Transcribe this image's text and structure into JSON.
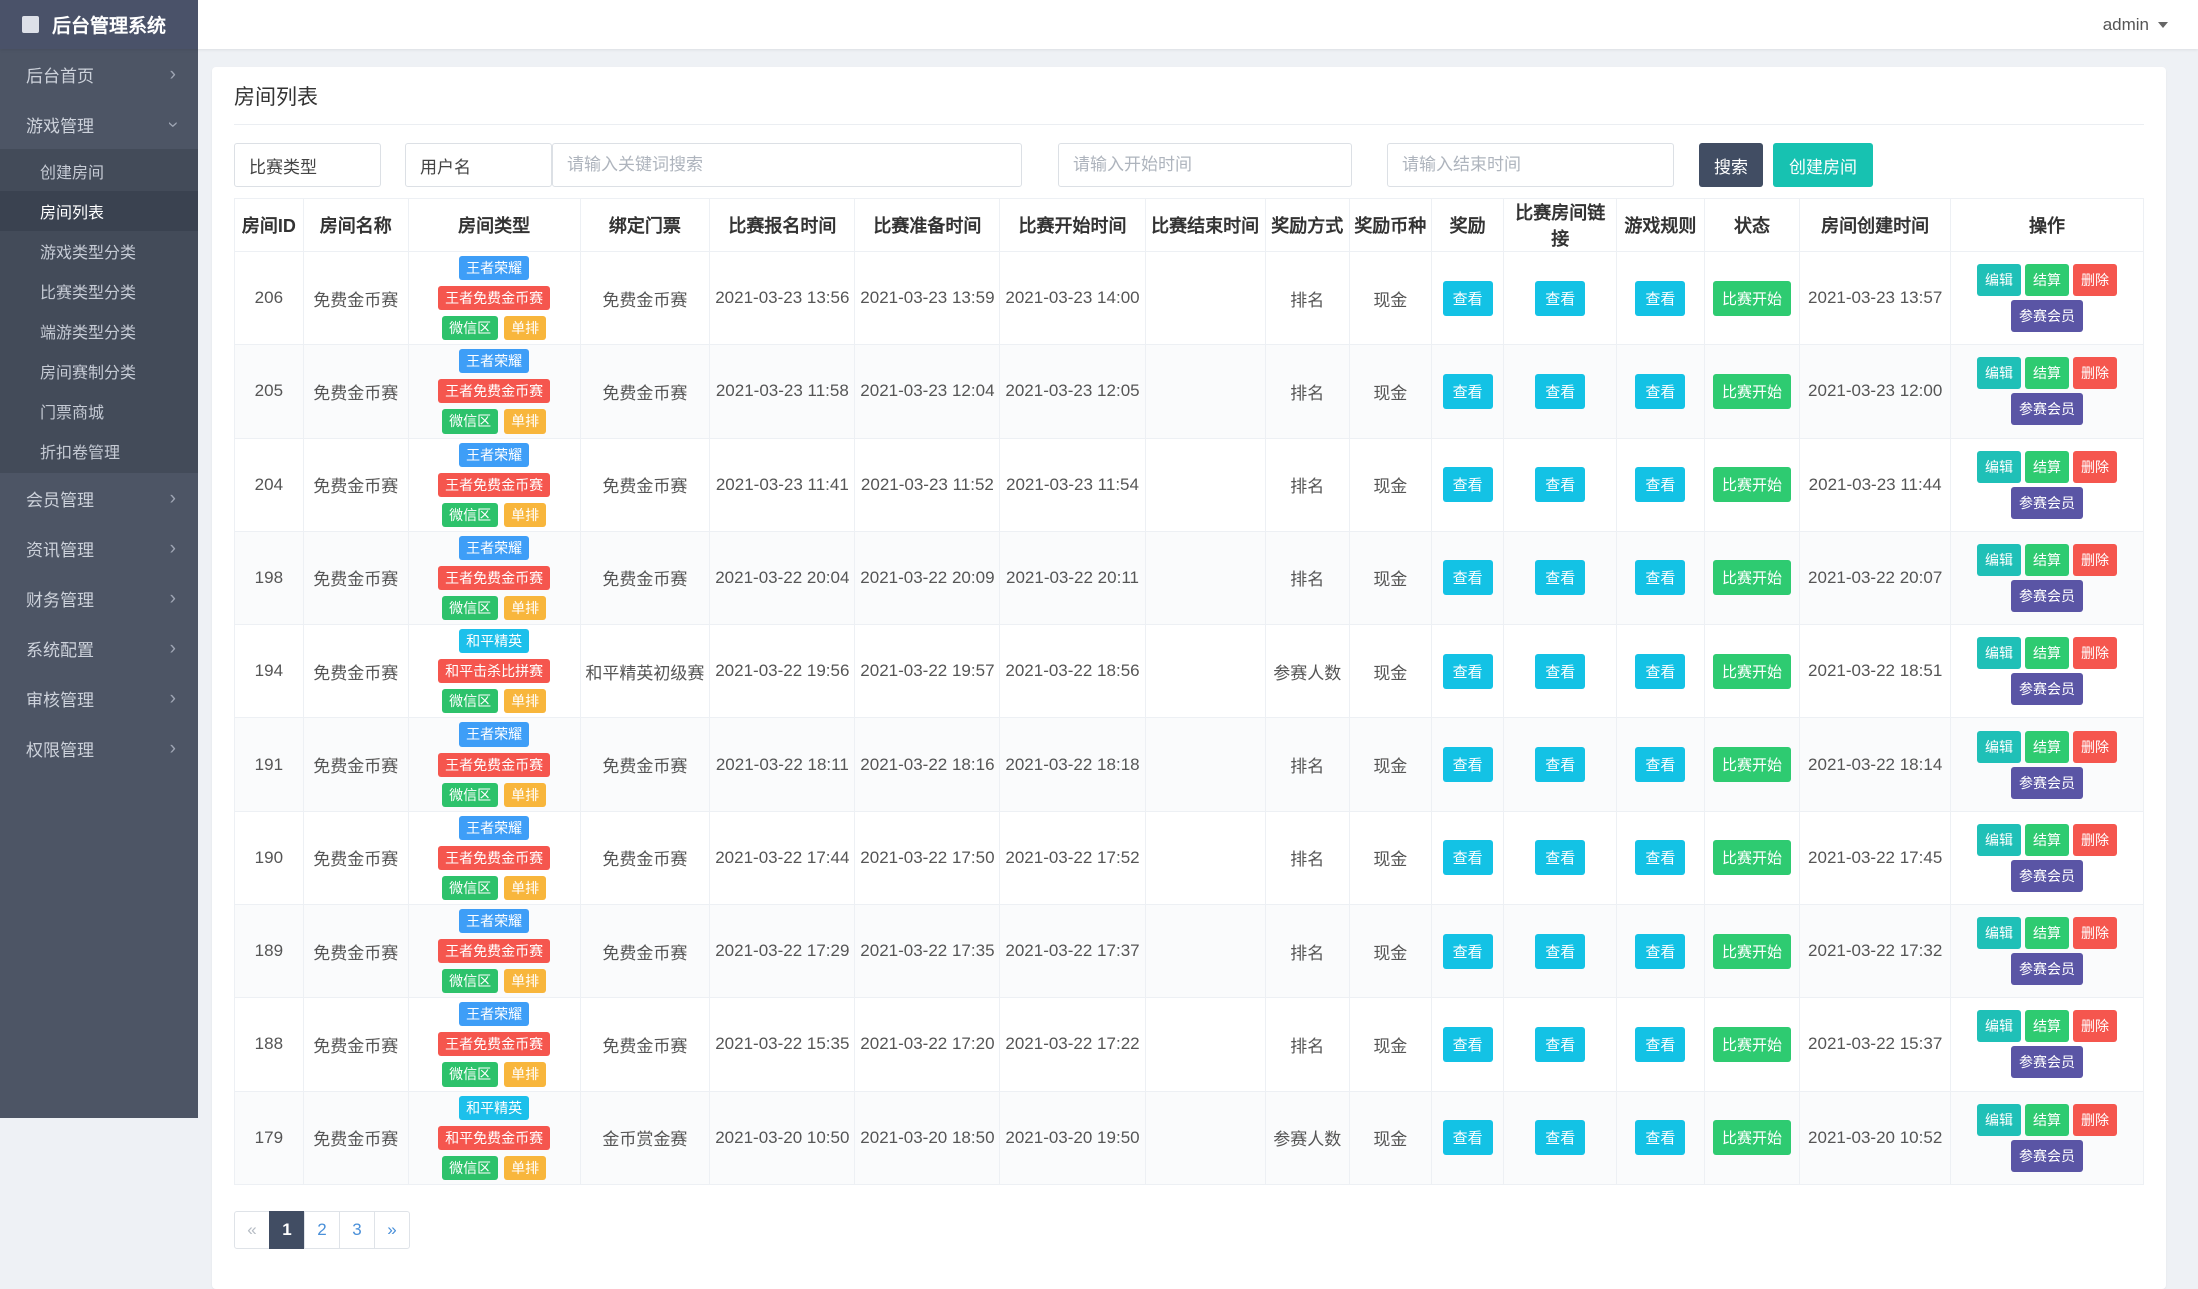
{
  "app": {
    "title": "后台管理系统",
    "user": "admin"
  },
  "sidebar": {
    "items": [
      {
        "label": "后台首页",
        "chevron": "right"
      },
      {
        "label": "游戏管理",
        "chevron": "down",
        "children": [
          {
            "label": "创建房间",
            "active": false
          },
          {
            "label": "房间列表",
            "active": true
          },
          {
            "label": "游戏类型分类",
            "active": false
          },
          {
            "label": "比赛类型分类",
            "active": false
          },
          {
            "label": "端游类型分类",
            "active": false
          },
          {
            "label": "房间赛制分类",
            "active": false
          },
          {
            "label": "门票商城",
            "active": false
          },
          {
            "label": "折扣卷管理",
            "active": false
          }
        ]
      },
      {
        "label": "会员管理",
        "chevron": "right"
      },
      {
        "label": "资讯管理",
        "chevron": "right"
      },
      {
        "label": "财务管理",
        "chevron": "right"
      },
      {
        "label": "系统配置",
        "chevron": "right"
      },
      {
        "label": "审核管理",
        "chevron": "right"
      },
      {
        "label": "权限管理",
        "chevron": "right"
      }
    ]
  },
  "page": {
    "title": "房间列表"
  },
  "filters": {
    "match_type": "比赛类型",
    "username": "用户名",
    "keyword_placeholder": "请输入关键词搜索",
    "start_time_placeholder": "请输入开始时间",
    "end_time_placeholder": "请输入结束时间",
    "search_label": "搜索",
    "create_label": "创建房间"
  },
  "table": {
    "columns": [
      "房间ID",
      "房间名称",
      "房间类型",
      "绑定门票",
      "比赛报名时间",
      "比赛准备时间",
      "比赛开始时间",
      "比赛结束时间",
      "奖励方式",
      "奖励币种",
      "奖励",
      "比赛房间链接",
      "游戏规则",
      "状态",
      "房间创建时间",
      "操作"
    ],
    "view_label": "查看",
    "action_labels": [
      "编辑",
      "结算",
      "删除",
      "参赛会员"
    ],
    "rows": [
      {
        "id": "206",
        "name": "免费金币赛",
        "badges": [
          [
            "王者荣耀",
            "blue"
          ],
          [
            "王者免费金币赛",
            "red"
          ],
          [
            "微信区",
            "green"
          ],
          [
            "单排",
            "orange"
          ]
        ],
        "ticket": "免费金币赛",
        "signup": "2021-03-23 13:56",
        "prepare": "2021-03-23 13:59",
        "start": "2021-03-23 14:00",
        "end": "",
        "reward_mode": "排名",
        "currency": "现金",
        "status": "比赛开始",
        "created": "2021-03-23 13:57"
      },
      {
        "id": "205",
        "name": "免费金币赛",
        "badges": [
          [
            "王者荣耀",
            "blue"
          ],
          [
            "王者免费金币赛",
            "red"
          ],
          [
            "微信区",
            "green"
          ],
          [
            "单排",
            "orange"
          ]
        ],
        "ticket": "免费金币赛",
        "signup": "2021-03-23 11:58",
        "prepare": "2021-03-23 12:04",
        "start": "2021-03-23 12:05",
        "end": "",
        "reward_mode": "排名",
        "currency": "现金",
        "status": "比赛开始",
        "created": "2021-03-23 12:00"
      },
      {
        "id": "204",
        "name": "免费金币赛",
        "badges": [
          [
            "王者荣耀",
            "blue"
          ],
          [
            "王者免费金币赛",
            "red"
          ],
          [
            "微信区",
            "green"
          ],
          [
            "单排",
            "orange"
          ]
        ],
        "ticket": "免费金币赛",
        "signup": "2021-03-23 11:41",
        "prepare": "2021-03-23 11:52",
        "start": "2021-03-23 11:54",
        "end": "",
        "reward_mode": "排名",
        "currency": "现金",
        "status": "比赛开始",
        "created": "2021-03-23 11:44"
      },
      {
        "id": "198",
        "name": "免费金币赛",
        "badges": [
          [
            "王者荣耀",
            "blue"
          ],
          [
            "王者免费金币赛",
            "red"
          ],
          [
            "微信区",
            "green"
          ],
          [
            "单排",
            "orange"
          ]
        ],
        "ticket": "免费金币赛",
        "signup": "2021-03-22 20:04",
        "prepare": "2021-03-22 20:09",
        "start": "2021-03-22 20:11",
        "end": "",
        "reward_mode": "排名",
        "currency": "现金",
        "status": "比赛开始",
        "created": "2021-03-22 20:07"
      },
      {
        "id": "194",
        "name": "免费金币赛",
        "badges": [
          [
            "和平精英",
            "cyan"
          ],
          [
            "和平击杀比拼赛",
            "red"
          ],
          [
            "微信区",
            "green"
          ],
          [
            "单排",
            "orange"
          ]
        ],
        "ticket": "和平精英初级赛",
        "signup": "2021-03-22 19:56",
        "prepare": "2021-03-22 19:57",
        "start": "2021-03-22 18:56",
        "end": "",
        "reward_mode": "参赛人数",
        "currency": "现金",
        "status": "比赛开始",
        "created": "2021-03-22 18:51"
      },
      {
        "id": "191",
        "name": "免费金币赛",
        "badges": [
          [
            "王者荣耀",
            "blue"
          ],
          [
            "王者免费金币赛",
            "red"
          ],
          [
            "微信区",
            "green"
          ],
          [
            "单排",
            "orange"
          ]
        ],
        "ticket": "免费金币赛",
        "signup": "2021-03-22 18:11",
        "prepare": "2021-03-22 18:16",
        "start": "2021-03-22 18:18",
        "end": "",
        "reward_mode": "排名",
        "currency": "现金",
        "status": "比赛开始",
        "created": "2021-03-22 18:14"
      },
      {
        "id": "190",
        "name": "免费金币赛",
        "badges": [
          [
            "王者荣耀",
            "blue"
          ],
          [
            "王者免费金币赛",
            "red"
          ],
          [
            "微信区",
            "green"
          ],
          [
            "单排",
            "orange"
          ]
        ],
        "ticket": "免费金币赛",
        "signup": "2021-03-22 17:44",
        "prepare": "2021-03-22 17:50",
        "start": "2021-03-22 17:52",
        "end": "",
        "reward_mode": "排名",
        "currency": "现金",
        "status": "比赛开始",
        "created": "2021-03-22 17:45"
      },
      {
        "id": "189",
        "name": "免费金币赛",
        "badges": [
          [
            "王者荣耀",
            "blue"
          ],
          [
            "王者免费金币赛",
            "red"
          ],
          [
            "微信区",
            "green"
          ],
          [
            "单排",
            "orange"
          ]
        ],
        "ticket": "免费金币赛",
        "signup": "2021-03-22 17:29",
        "prepare": "2021-03-22 17:35",
        "start": "2021-03-22 17:37",
        "end": "",
        "reward_mode": "排名",
        "currency": "现金",
        "status": "比赛开始",
        "created": "2021-03-22 17:32"
      },
      {
        "id": "188",
        "name": "免费金币赛",
        "badges": [
          [
            "王者荣耀",
            "blue"
          ],
          [
            "王者免费金币赛",
            "red"
          ],
          [
            "微信区",
            "green"
          ],
          [
            "单排",
            "orange"
          ]
        ],
        "ticket": "免费金币赛",
        "signup": "2021-03-22 15:35",
        "prepare": "2021-03-22 17:20",
        "start": "2021-03-22 17:22",
        "end": "",
        "reward_mode": "排名",
        "currency": "现金",
        "status": "比赛开始",
        "created": "2021-03-22 15:37"
      },
      {
        "id": "179",
        "name": "免费金币赛",
        "badges": [
          [
            "和平精英",
            "cyan"
          ],
          [
            "和平免费金币赛",
            "red"
          ],
          [
            "微信区",
            "green"
          ],
          [
            "单排",
            "orange"
          ]
        ],
        "ticket": "金币赏金赛",
        "signup": "2021-03-20 10:50",
        "prepare": "2021-03-20 18:50",
        "start": "2021-03-20 19:50",
        "end": "",
        "reward_mode": "参赛人数",
        "currency": "现金",
        "status": "比赛开始",
        "created": "2021-03-20 10:52"
      }
    ]
  },
  "pagination": {
    "prev": "«",
    "next": "»",
    "pages": [
      "1",
      "2",
      "3"
    ],
    "active": "1"
  },
  "colors": {
    "accent_cyan": "#13C2E5",
    "accent_green": "#2ECB71",
    "accent_teal": "#1FC0B7",
    "accent_red": "#F5564E",
    "accent_indigo": "#5A55A5",
    "accent_blue": "#3E9EF7",
    "accent_orange": "#F8B63C",
    "dark_slate": "#414D63",
    "create_teal": "#17C2B1"
  }
}
